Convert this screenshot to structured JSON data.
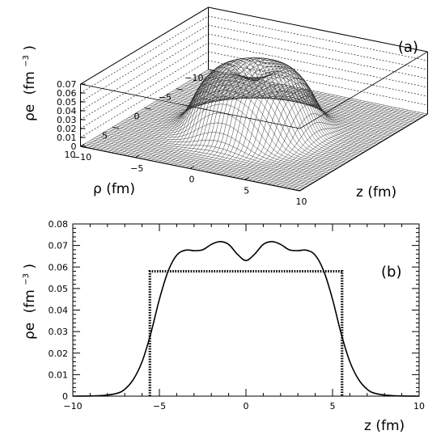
{
  "chart_data": [
    {
      "panel": "a",
      "type": "surface3d",
      "panel_label": "(a)",
      "zlabel": "ρe",
      "zlabel_unit": "(fm",
      "zlabel_exp": "−3",
      "zlabel_close": ")",
      "xlabel": "z (fm)",
      "ylabel": "ρ (fm)",
      "z_ticks": [
        "0",
        "0.01",
        "0.02",
        "0.03",
        "0.04",
        "0.05",
        "0.06",
        "0.07"
      ],
      "x_ticks": [
        "−10",
        "−5",
        "0",
        "5",
        "10"
      ],
      "y_ticks": [
        "10",
        "5",
        "0",
        "−5",
        "−10"
      ],
      "xlim": [
        -10,
        10
      ],
      "ylim": [
        -10,
        10
      ],
      "zlim": [
        0,
        0.07
      ],
      "surface": "Fermi-like charge density ρe(ρ, z), flat top ≈0.07 fm^-3 with a small central dip, radius ≈5.5 fm"
    },
    {
      "panel": "b",
      "type": "line",
      "panel_label": "(b)",
      "xlabel": "z (fm)",
      "ylabel": "ρe",
      "ylabel_unit": "(fm",
      "ylabel_exp": "−3",
      "ylabel_close": ")",
      "xlim": [
        -10,
        10
      ],
      "ylim": [
        0,
        0.08
      ],
      "x_ticks": [
        "−10",
        "−5",
        "0",
        "5",
        "10"
      ],
      "y_ticks": [
        "0",
        "0.01",
        "0.02",
        "0.03",
        "0.04",
        "0.05",
        "0.06",
        "0.07",
        "0.08"
      ],
      "series": [
        {
          "style": "solid",
          "x": [
            -10,
            -8.5,
            -7.5,
            -7,
            -6.5,
            -6,
            -5.5,
            -5,
            -4.5,
            -4,
            -3.5,
            -3,
            -2.5,
            -2,
            -1.5,
            -1,
            -0.5,
            0,
            0.5,
            1,
            1.5,
            2,
            2.5,
            3,
            3.5,
            4,
            4.5,
            5,
            5.5,
            6,
            6.5,
            7,
            7.5,
            8.5,
            10
          ],
          "y": [
            0,
            0.0002,
            0.0012,
            0.0032,
            0.0078,
            0.016,
            0.029,
            0.045,
            0.058,
            0.0655,
            0.0678,
            0.0676,
            0.068,
            0.0705,
            0.0718,
            0.0705,
            0.066,
            0.063,
            0.066,
            0.0705,
            0.0718,
            0.0705,
            0.068,
            0.0676,
            0.0678,
            0.0655,
            0.058,
            0.045,
            0.029,
            0.016,
            0.0078,
            0.0032,
            0.0012,
            0.0002,
            0
          ]
        },
        {
          "style": "dotted-box",
          "x": [
            -5.55,
            -5.55,
            5.55,
            5.55
          ],
          "y": [
            0,
            0.058,
            0.058,
            0
          ]
        }
      ]
    }
  ]
}
